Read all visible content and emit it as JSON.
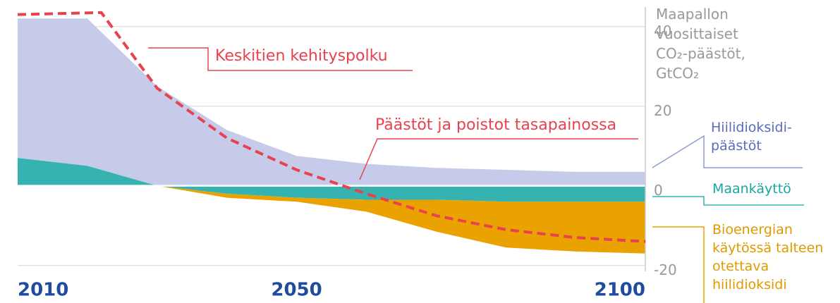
{
  "chart_data": {
    "type": "area",
    "title": "Maapallon vuosittaiset CO₂-päästöt, GtCO₂",
    "x": [
      2010,
      2020,
      2030,
      2040,
      2050,
      2060,
      2070,
      2080,
      2090,
      2100
    ],
    "series": [
      {
        "name": "Maankäyttö",
        "color": "#36b3b0",
        "values": [
          7,
          5,
          0,
          -2,
          -3,
          -3.5,
          -3.5,
          -4,
          -4,
          -4
        ]
      },
      {
        "name": "Hiilidioksidi-päästöt",
        "color": "#c5cbe8",
        "values": [
          35,
          37,
          25,
          14,
          7.5,
          5.5,
          4.5,
          4,
          3.5,
          3.5
        ]
      },
      {
        "name": "Bioenergian käytössä talteen otettava hiilidioksidi",
        "color": "#eaa200",
        "values": [
          0,
          0,
          0,
          -1,
          -1,
          -3,
          -8,
          -11.5,
          -12.5,
          -13
        ]
      },
      {
        "name": "Keskitien kehityspolku",
        "type": "line",
        "color": "#e8424f",
        "x": [
          2010,
          2022,
          2030,
          2040,
          2050,
          2060,
          2070,
          2080,
          2090,
          2100
        ],
        "values": [
          43,
          43.5,
          24.5,
          12,
          4,
          -2,
          -7.5,
          -11,
          -13,
          -14
        ]
      }
    ],
    "annotations": [
      "Päästöt ja poistot tasapainossa"
    ],
    "xlim": [
      2010,
      2100
    ],
    "xticks": [
      2010,
      2050,
      2100
    ],
    "ylim": [
      -22,
      44
    ],
    "yticks": [
      40,
      20,
      0,
      -20
    ],
    "grid": true
  }
}
